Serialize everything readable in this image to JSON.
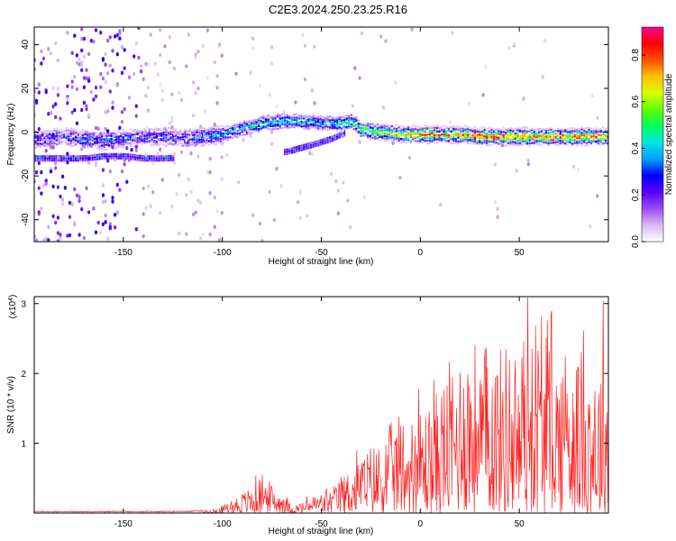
{
  "title": "C2E3.2024.250.23.25.R16",
  "chart_data": [
    {
      "type": "heatmap",
      "xlabel": "Height of straight line (km)",
      "ylabel": "Frequency (Hz)",
      "xlim": [
        -195,
        95
      ],
      "ylim": [
        -50,
        48
      ],
      "xticks": [
        -150,
        -100,
        -50,
        0,
        50
      ],
      "yticks": [
        -40,
        -20,
        0,
        20,
        40
      ],
      "colorbar": {
        "label": "Normalized spectral amplitude",
        "range": [
          0.0,
          0.92
        ],
        "ticks": [
          0.0,
          0.2,
          0.4,
          0.6,
          0.8
        ],
        "colormap": [
          "#ffffff",
          "#d7b8f4",
          "#9a4cf0",
          "#5a00ff",
          "#0000ff",
          "#00a0ff",
          "#00e5e0",
          "#00ff60",
          "#60ff00",
          "#d8ff00",
          "#ffc000",
          "#ff5000",
          "#ff0000",
          "#ff0090"
        ]
      },
      "ridge": {
        "x": [
          -190,
          -180,
          -170,
          -160,
          -150,
          -140,
          -130,
          -120,
          -110,
          -100,
          -90,
          -80,
          -70,
          -60,
          -50,
          -40,
          -35,
          -30,
          -20,
          -10,
          0,
          10,
          20,
          30,
          40,
          50,
          60,
          70,
          80,
          90
        ],
        "y": [
          -3,
          -2,
          -3,
          -4,
          -3,
          -2,
          -2,
          -3,
          -2,
          -1,
          2,
          4,
          5,
          5,
          4,
          4,
          5,
          1,
          0,
          -1,
          -1,
          -1,
          -1,
          -2,
          -2,
          -2,
          -2,
          -2,
          -2,
          -2
        ],
        "amplitude": [
          0.3,
          0.3,
          0.35,
          0.35,
          0.3,
          0.3,
          0.3,
          0.3,
          0.35,
          0.35,
          0.45,
          0.45,
          0.45,
          0.4,
          0.4,
          0.5,
          0.5,
          0.55,
          0.6,
          0.7,
          0.75,
          0.8,
          0.8,
          0.85,
          0.85,
          0.85,
          0.8,
          0.8,
          0.8,
          0.75
        ]
      },
      "secondary_ridge": {
        "x": [
          -180,
          -170,
          -160,
          -150,
          -140,
          -130,
          -68,
          -60,
          -52,
          -45,
          -38
        ],
        "y": [
          -12,
          -12,
          -11,
          -11,
          -12,
          -12,
          -9,
          -7,
          -5,
          -3,
          0
        ]
      }
    },
    {
      "type": "line",
      "xlabel": "Height of straight line (km)",
      "ylabel": "SNR (10 * v/v)",
      "y_multiplier": "(x10",
      "y_multiplier_exp": "4",
      "y_multiplier_close": ")",
      "xlim": [
        -195,
        95
      ],
      "ylim": [
        0,
        3.1
      ],
      "xticks": [
        -150,
        -100,
        -50,
        0,
        50
      ],
      "yticks": [
        1,
        2,
        3
      ],
      "series": [
        {
          "color": "#ff2020",
          "x": [
            -195,
            -180,
            -160,
            -140,
            -120,
            -105,
            -100,
            -95,
            -90,
            -85,
            -80,
            -75,
            -70,
            -65,
            -60,
            -55,
            -50,
            -45,
            -40,
            -35,
            -30,
            -25,
            -20,
            -15,
            -10,
            -5,
            0,
            5,
            10,
            15,
            20,
            25,
            30,
            35,
            40,
            45,
            50,
            55,
            57,
            60,
            65,
            70,
            75,
            80,
            85,
            90,
            93,
            95
          ],
          "envelope_y": [
            0.03,
            0.03,
            0.03,
            0.03,
            0.03,
            0.05,
            0.1,
            0.2,
            0.3,
            0.38,
            0.58,
            0.42,
            0.3,
            0.12,
            0.15,
            0.25,
            0.3,
            0.35,
            0.5,
            0.68,
            0.85,
            1.0,
            1.05,
            1.3,
            1.45,
            1.4,
            1.55,
            1.6,
            1.85,
            2.2,
            2.4,
            2.65,
            2.35,
            2.55,
            2.4,
            2.55,
            2.35,
            2.75,
            3.1,
            2.75,
            2.5,
            2.35,
            2.55,
            2.3,
            2.45,
            2.1,
            2.8,
            2.0
          ]
        }
      ]
    }
  ]
}
